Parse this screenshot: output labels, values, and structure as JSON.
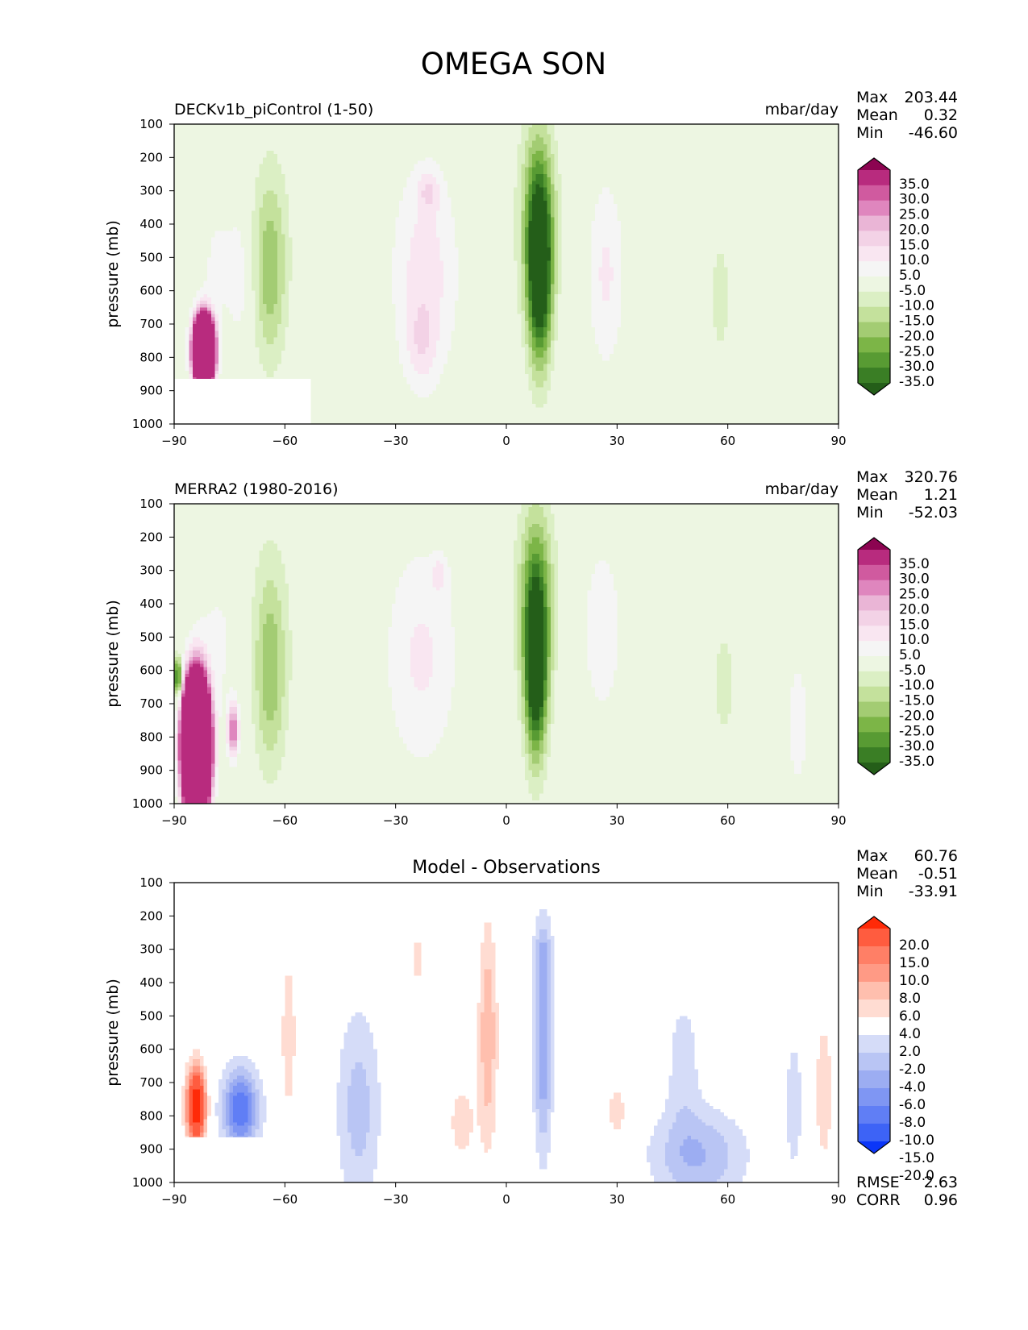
{
  "figure": {
    "title": "OMEGA SON"
  },
  "colors": {
    "omega": [
      "#245e19",
      "#3a7e25",
      "#589b33",
      "#7cb547",
      "#a3cc73",
      "#c4e19c",
      "#dbefc4",
      "#edf6e2",
      "#f5f5f5",
      "#f9e6f1",
      "#f3d2e6",
      "#eab5d6",
      "#df86be",
      "#d05a9f",
      "#b82b7e",
      "#8c0451"
    ],
    "diff": [
      "#0b36f8",
      "#3d63f6",
      "#607ef5",
      "#7f96f3",
      "#9cadf2",
      "#b9c5f4",
      "#d5dcf8",
      "#ffffff",
      "#ffdcd2",
      "#ffbfae",
      "#ff9a85",
      "#ff7f66",
      "#ff5c3f",
      "#ff2a08"
    ]
  },
  "chart_data": [
    {
      "type": "heatmap",
      "title": "",
      "subtitle_left": "DECKv1b_piControl (1-50)",
      "subtitle_right": "mbar/day",
      "xlabel": "",
      "ylabel": "pressure (mb)",
      "xlim": [
        -90,
        90
      ],
      "ylim": [
        1000,
        100
      ],
      "xticks": [
        "−90",
        "−60",
        "−30",
        "0",
        "30",
        "60",
        "90"
      ],
      "yticks": [
        "100",
        "200",
        "300",
        "400",
        "500",
        "600",
        "700",
        "800",
        "900",
        "1000"
      ],
      "stats": [
        {
          "label": "Max",
          "value": "203.44"
        },
        {
          "label": "Mean",
          "value": "0.32"
        },
        {
          "label": "Min",
          "value": "-46.60"
        }
      ],
      "colorbar": {
        "palette": "omega",
        "levels": [
          "35.0",
          "30.0",
          "25.0",
          "20.0",
          "15.0",
          "10.0",
          "5.0",
          "-5.0",
          "-10.0",
          "-15.0",
          "-20.0",
          "-25.0",
          "-30.0",
          "-35.0"
        ]
      },
      "features": [
        {
          "lat": 9,
          "p": 550,
          "v": -42,
          "wx": 3.2,
          "wp": 270
        },
        {
          "lat": 8.5,
          "p": 380,
          "v": -22,
          "wx": 5,
          "wp": 300
        },
        {
          "lat": -22,
          "p": 550,
          "v": 13,
          "wx": 9,
          "wp": 330
        },
        {
          "lat": -21,
          "p": 300,
          "v": 10,
          "wx": 3,
          "wp": 60
        },
        {
          "lat": -23,
          "p": 760,
          "v": 8,
          "wx": 4,
          "wp": 120
        },
        {
          "lat": 27,
          "p": 550,
          "v": 11,
          "wx": 5,
          "wp": 290
        },
        {
          "lat": -64,
          "p": 550,
          "v": -14,
          "wx": 4,
          "wp": 260
        },
        {
          "lat": -64,
          "p": 460,
          "v": -6,
          "wx": 7,
          "wp": 340
        },
        {
          "lat": 58,
          "p": 620,
          "v": -6,
          "wx": 5,
          "wp": 310
        },
        {
          "lat": -82,
          "p": 780,
          "v": 200,
          "wx": 2.5,
          "wp": 90
        },
        {
          "lat": -78,
          "p": 520,
          "v": 6,
          "wx": 6,
          "wp": 240
        },
        {
          "lat": -72,
          "p": 560,
          "v": 7,
          "wx": 3,
          "wp": 200
        }
      ],
      "masks": [
        {
          "lon": [
            -90,
            -53
          ],
          "p": [
            865,
            1000
          ]
        }
      ]
    },
    {
      "type": "heatmap",
      "title": "",
      "subtitle_left": "MERRA2 (1980-2016)",
      "subtitle_right": "mbar/day",
      "xlabel": "",
      "ylabel": "pressure (mb)",
      "xlim": [
        -90,
        90
      ],
      "ylim": [
        1000,
        100
      ],
      "xticks": [
        "−90",
        "−60",
        "−30",
        "0",
        "30",
        "60",
        "90"
      ],
      "yticks": [
        "100",
        "200",
        "300",
        "400",
        "500",
        "600",
        "700",
        "800",
        "900",
        "1000"
      ],
      "stats": [
        {
          "label": "Max",
          "value": "320.76"
        },
        {
          "label": "Mean",
          "value": "1.21"
        },
        {
          "label": "Min",
          "value": "-52.03"
        }
      ],
      "colorbar": {
        "palette": "omega",
        "levels": [
          "35.0",
          "30.0",
          "25.0",
          "20.0",
          "15.0",
          "10.0",
          "5.0",
          "-5.0",
          "-10.0",
          "-15.0",
          "-20.0",
          "-25.0",
          "-30.0",
          "-35.0"
        ]
      },
      "features": [
        {
          "lat": 8,
          "p": 600,
          "v": -45,
          "wx": 3,
          "wp": 260
        },
        {
          "lat": 8,
          "p": 370,
          "v": -22,
          "wx": 5,
          "wp": 290
        },
        {
          "lat": -23,
          "p": 560,
          "v": 11,
          "wx": 10,
          "wp": 340
        },
        {
          "lat": -18,
          "p": 310,
          "v": 10,
          "wx": 2,
          "wp": 50
        },
        {
          "lat": 26,
          "p": 480,
          "v": 10,
          "wx": 5,
          "wp": 260
        },
        {
          "lat": -64,
          "p": 620,
          "v": -15,
          "wx": 4,
          "wp": 280
        },
        {
          "lat": -64,
          "p": 480,
          "v": -6,
          "wx": 7,
          "wp": 360
        },
        {
          "lat": 59,
          "p": 640,
          "v": -6,
          "wx": 5,
          "wp": 300
        },
        {
          "lat": -84,
          "p": 830,
          "v": 300,
          "wx": 3,
          "wp": 170
        },
        {
          "lat": -74,
          "p": 780,
          "v": 30,
          "wx": 1.5,
          "wp": 80
        },
        {
          "lat": -78,
          "p": 520,
          "v": 6,
          "wx": 7,
          "wp": 260
        },
        {
          "lat": -89,
          "p": 620,
          "v": -40,
          "wx": 1,
          "wp": 60
        },
        {
          "lat": 79,
          "p": 760,
          "v": 8,
          "wx": 3,
          "wp": 230
        }
      ],
      "masks": []
    },
    {
      "type": "heatmap",
      "title": "Model - Observations",
      "subtitle_left": "",
      "subtitle_right": "",
      "xlabel": "",
      "ylabel": "pressure (mb)",
      "xlim": [
        -90,
        90
      ],
      "ylim": [
        1000,
        100
      ],
      "xticks": [
        "−90",
        "−60",
        "−30",
        "0",
        "30",
        "60",
        "90"
      ],
      "yticks": [
        "100",
        "200",
        "300",
        "400",
        "500",
        "600",
        "700",
        "800",
        "900",
        "1000"
      ],
      "stats": [
        {
          "label": "Max",
          "value": "60.76"
        },
        {
          "label": "Mean",
          "value": "-0.51"
        },
        {
          "label": "Min",
          "value": "-33.91"
        }
      ],
      "bottom_stats": [
        {
          "label": "RMSE",
          "value": "2.63"
        },
        {
          "label": "CORR",
          "value": "0.96"
        }
      ],
      "colorbar": {
        "palette": "diff",
        "levels": [
          "20.0",
          "15.0",
          "10.0",
          "8.0",
          "6.0",
          "4.0",
          "2.0",
          "-2.0",
          "-4.0",
          "-6.0",
          "-8.0",
          "-10.0",
          "-15.0",
          "-20.0"
        ]
      },
      "features": [
        {
          "lat": -5,
          "p": 560,
          "v": 6,
          "wx": 2.5,
          "wp": 330
        },
        {
          "lat": 10,
          "p": 600,
          "v": -8,
          "wx": 2.5,
          "wp": 310
        },
        {
          "lat": 10,
          "p": 330,
          "v": -4,
          "wx": 2.5,
          "wp": 120
        },
        {
          "lat": -40,
          "p": 780,
          "v": -5,
          "wx": 6,
          "wp": 300
        },
        {
          "lat": -72,
          "p": 780,
          "v": -12,
          "wx": 5,
          "wp": 120
        },
        {
          "lat": -84,
          "p": 770,
          "v": 20,
          "wx": 2.5,
          "wp": 110
        },
        {
          "lat": 52,
          "p": 920,
          "v": -6,
          "wx": 13,
          "wp": 140
        },
        {
          "lat": 48,
          "p": 640,
          "v": -3,
          "wx": 5,
          "wp": 230
        },
        {
          "lat": -59,
          "p": 560,
          "v": 3,
          "wx": 2.5,
          "wp": 300
        },
        {
          "lat": 86,
          "p": 730,
          "v": 3,
          "wx": 3,
          "wp": 270
        },
        {
          "lat": -12,
          "p": 820,
          "v": 3,
          "wx": 4,
          "wp": 130
        },
        {
          "lat": 78,
          "p": 760,
          "v": -3,
          "wx": 3,
          "wp": 250
        },
        {
          "lat": 30,
          "p": 790,
          "v": 3,
          "wx": 3,
          "wp": 100
        },
        {
          "lat": -24,
          "p": 330,
          "v": 3,
          "wx": 2,
          "wp": 80
        }
      ],
      "masks": [
        {
          "lon": [
            -90,
            -53
          ],
          "p": [
            865,
            1000
          ]
        }
      ]
    }
  ]
}
